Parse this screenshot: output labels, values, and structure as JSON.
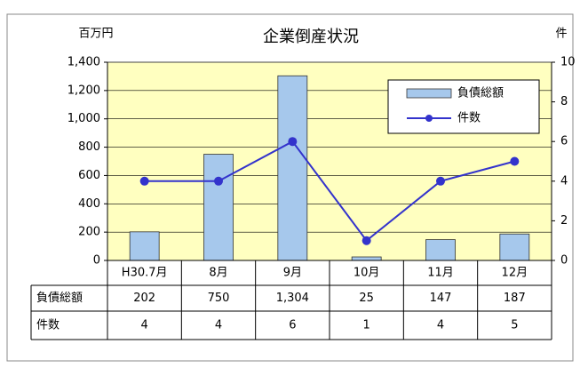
{
  "chart_data": {
    "type": "bar",
    "title": "企業倒産状況",
    "y_unit": "百万円",
    "y2_unit": "件",
    "categories": [
      "H30.7月",
      "8月",
      "9月",
      "10月",
      "11月",
      "12月"
    ],
    "series": [
      {
        "name": "負債総額",
        "type": "bar",
        "color": "#a6c8ec",
        "values": [
          202,
          750,
          1304,
          25,
          147,
          187
        ],
        "value_labels": [
          "202",
          "750",
          "1,304",
          "25",
          "147",
          "187"
        ]
      },
      {
        "name": "件数",
        "type": "line",
        "axis": "y2",
        "color": "#3333cc",
        "values": [
          4,
          4,
          6,
          1,
          4,
          5
        ]
      }
    ],
    "ylim": [
      0,
      1400
    ],
    "yticks": [
      0,
      200,
      400,
      600,
      800,
      {
        "value": 1000,
        "label": "1,000"
      },
      {
        "value": 1200,
        "label": "1,200"
      },
      {
        "value": 1400,
        "label": "1,400"
      }
    ],
    "y2lim": [
      0,
      10
    ],
    "y2ticks": [
      0,
      2,
      4,
      6,
      8,
      10
    ],
    "grid": true,
    "legend": "top-right",
    "background": "#ffffc0"
  }
}
